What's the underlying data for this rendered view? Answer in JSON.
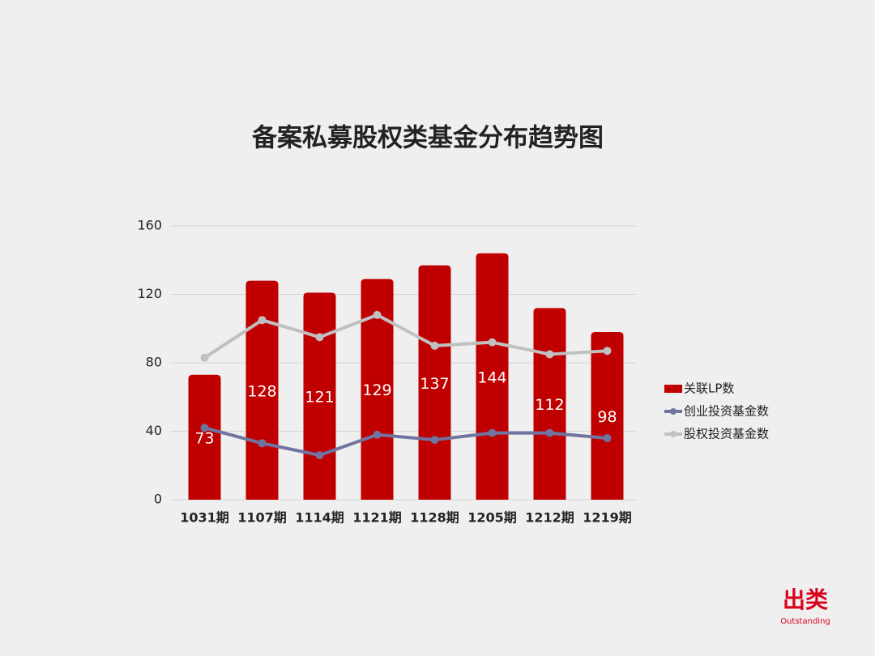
{
  "chart_data": {
    "type": "bar",
    "title": "备案私募股权类基金分布趋势图",
    "categories": [
      "1031期",
      "1107期",
      "1114期",
      "1121期",
      "1128期",
      "1205期",
      "1212期",
      "1219期"
    ],
    "series": [
      {
        "name": "关联LP数",
        "type": "bar",
        "color": "#c00000",
        "values": [
          73,
          128,
          121,
          129,
          137,
          144,
          112,
          98
        ]
      },
      {
        "name": "创业投资基金数",
        "type": "line",
        "color": "#7074a0",
        "values": [
          42,
          33,
          26,
          38,
          35,
          39,
          39,
          36
        ]
      },
      {
        "name": "股权投资基金数",
        "type": "line",
        "color": "#c0c0c0",
        "values": [
          83,
          105,
          95,
          108,
          90,
          92,
          85,
          87
        ]
      }
    ],
    "ylim": [
      0,
      160
    ],
    "yticks": [
      0,
      40,
      80,
      120,
      160
    ],
    "grid": true,
    "legend": "right"
  },
  "brand": {
    "name": "出类",
    "tagline": "Outstanding"
  }
}
